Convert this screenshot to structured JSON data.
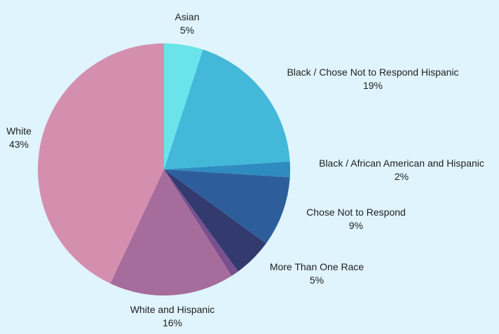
{
  "chart_data": {
    "type": "pie",
    "title": "",
    "slices": [
      {
        "label": "Asian",
        "value_label": "5%",
        "value": 5,
        "color": "#6be3ea"
      },
      {
        "label": "Black / Chose Not to Respond Hispanic",
        "value_label": "19%",
        "value": 19,
        "color": "#43b8d9"
      },
      {
        "label": "Black / African American and Hispanic",
        "value_label": "2%",
        "value": 2,
        "color": "#2f8cc0"
      },
      {
        "label": "Chose Not to Respond",
        "value_label": "9%",
        "value": 9,
        "color": "#2d5e9b"
      },
      {
        "label": "More Than One Race",
        "value_label": "5%",
        "value": 5,
        "color": "#333a6e"
      },
      {
        "label": "",
        "value_label": "",
        "value": 1,
        "color": "#7a4f8d"
      },
      {
        "label": "White and Hispanic",
        "value_label": "16%",
        "value": 16,
        "color": "#a66c9b"
      },
      {
        "label": "White",
        "value_label": "43%",
        "value": 43,
        "color": "#d48faf"
      }
    ]
  }
}
